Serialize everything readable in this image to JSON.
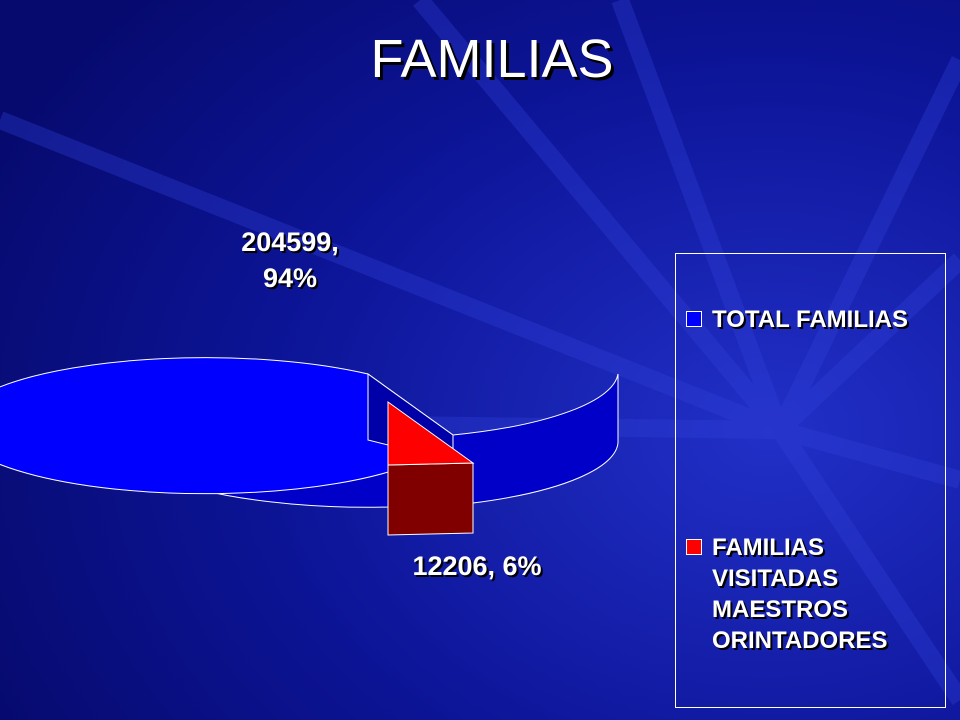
{
  "title": "FAMILIAS",
  "chart_data": {
    "type": "pie",
    "title": "FAMILIAS",
    "slices": [
      {
        "name": "TOTAL FAMILIAS",
        "value": 204599,
        "percent": 94,
        "label": "204599, 94%",
        "color": "#0000ff"
      },
      {
        "name": "FAMILIAS VISITADAS MAESTROS ORINTADORES",
        "value": 12206,
        "percent": 6,
        "label": "12206, 6%",
        "color": "#ff0000"
      }
    ],
    "label_lines": {
      "total": [
        "204599,",
        "94%"
      ],
      "visit": "12206, 6%"
    },
    "legend": {
      "placement": "right",
      "items": [
        "TOTAL FAMILIAS",
        "FAMILIAS VISITADAS MAESTROS ORINTADORES"
      ]
    },
    "style": "3d-exploded"
  },
  "colors": {
    "background": "#0a0f8a",
    "slice_blue": "#0000ff",
    "slice_blue_side": "#0000c8",
    "slice_red": "#ff0000",
    "slice_red_side": "#800000"
  }
}
